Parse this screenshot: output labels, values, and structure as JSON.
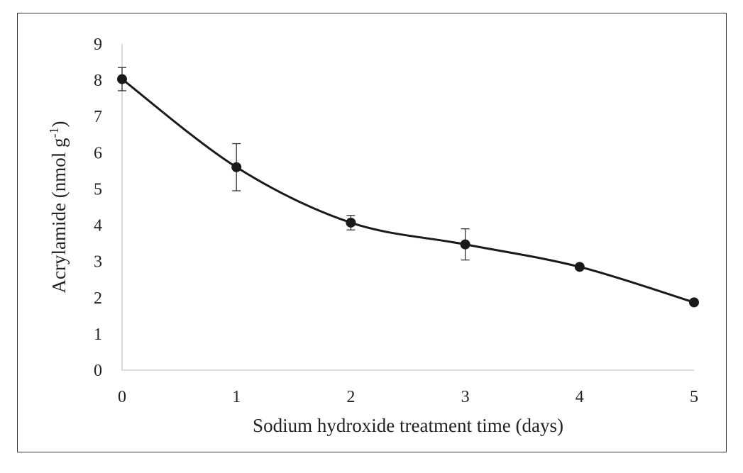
{
  "chart_data": {
    "type": "line",
    "xlabel": "Sodium hydroxide treatment time (days)",
    "ylabel": {
      "main": "Acrylamide (nmol g",
      "superscript": "-1",
      "close": ")"
    },
    "x": [
      0,
      1,
      2,
      3,
      4,
      5
    ],
    "x_ticks": [
      "0",
      "1",
      "2",
      "3",
      "4",
      "5"
    ],
    "y_ticks": [
      "0",
      "1",
      "2",
      "3",
      "4",
      "5",
      "6",
      "7",
      "8",
      "9"
    ],
    "xlim": [
      0,
      5
    ],
    "ylim": [
      0,
      9
    ],
    "grid": false,
    "series": [
      {
        "values": [
          8.03,
          5.6,
          4.07,
          3.47,
          2.85,
          1.87
        ],
        "error": [
          0.32,
          0.65,
          0.2,
          0.43,
          null,
          null
        ],
        "color": "#1a1a1a",
        "marker": "circle",
        "smooth": true
      }
    ]
  }
}
